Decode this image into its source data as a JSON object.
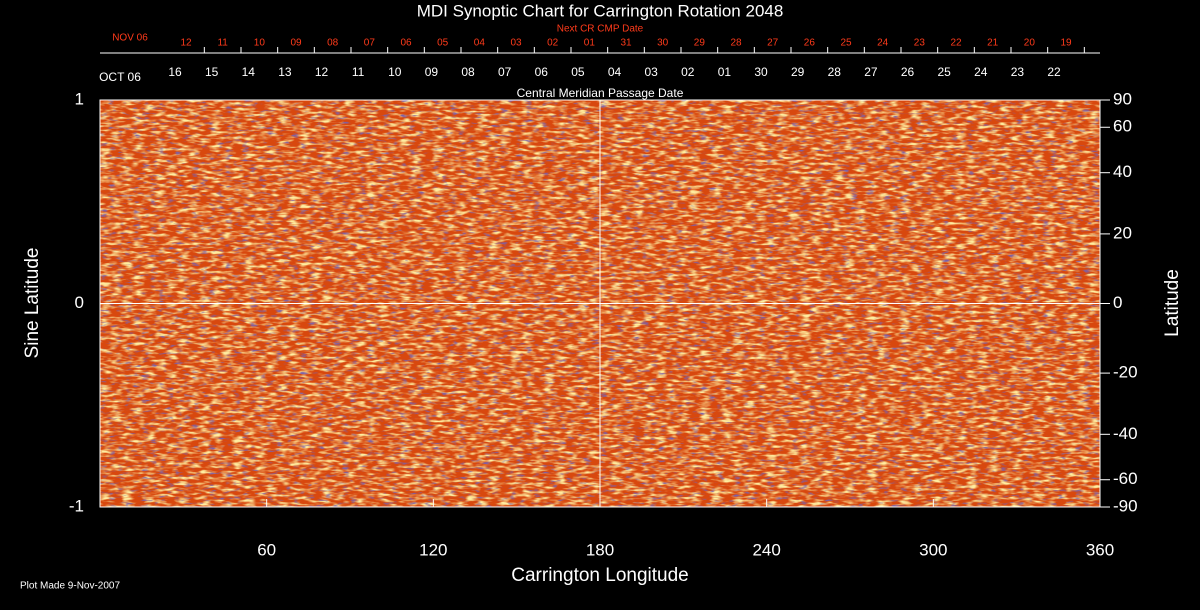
{
  "chart_data": {
    "type": "synoptic",
    "title": "MDI Synoptic Chart for Carrington Rotation 2048",
    "xlabel": "Carrington Longitude",
    "ylabel": "Sine Latitude",
    "y2label": "Latitude",
    "xlim": [
      0,
      360
    ],
    "xticks": [
      60,
      120,
      180,
      240,
      300,
      360
    ],
    "ylim": [
      -1,
      1
    ],
    "yticks": [
      -1,
      0,
      1
    ],
    "y2scale": "sine",
    "y2ticks": [
      90,
      60,
      40,
      20,
      0,
      -20,
      -40,
      -60,
      -90
    ],
    "top_axis_label": "Central Meridian Passage Date",
    "next_cr_label": "Next CR CMP Date",
    "next_cr_month": "NOV 06",
    "next_cr_dates": [
      "12",
      "11",
      "10",
      "09",
      "08",
      "07",
      "06",
      "05",
      "04",
      "03",
      "02",
      "01",
      "31",
      "30",
      "29",
      "28",
      "27",
      "26",
      "25",
      "24",
      "23",
      "22",
      "21",
      "20",
      "19"
    ],
    "cmp_month": "OCT 06",
    "cmp_dates": [
      "16",
      "15",
      "14",
      "13",
      "12",
      "11",
      "10",
      "09",
      "08",
      "07",
      "06",
      "05",
      "04",
      "03",
      "02",
      "01",
      "30",
      "29",
      "28",
      "27",
      "26",
      "25",
      "24",
      "23",
      "22"
    ],
    "footer": "Plot Made  9-Nov-2007"
  }
}
